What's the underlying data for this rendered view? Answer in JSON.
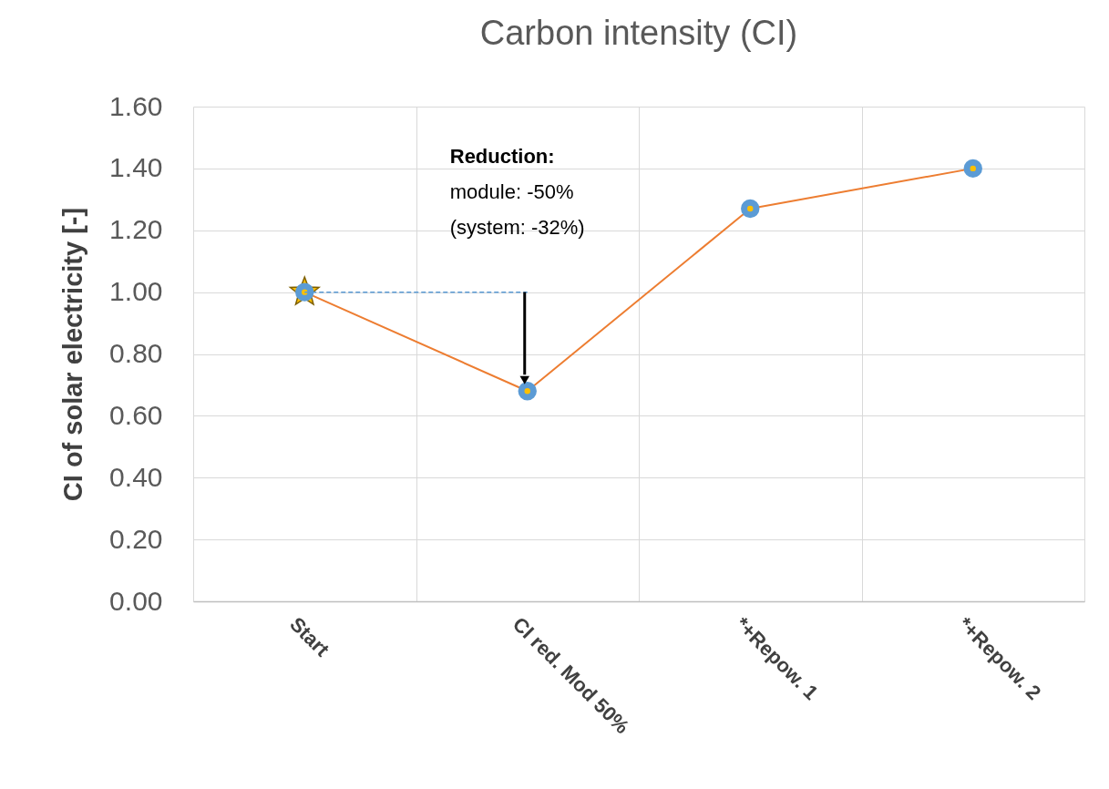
{
  "chart_data": {
    "type": "line",
    "title": "Carbon intensity (CI)",
    "ylabel": "CI of solar  electricity [-]",
    "categories": [
      "Start",
      "CI red. Mod 50%",
      "*+Repow. 1",
      "*+Repow. 2"
    ],
    "series": [
      {
        "color": "#ed7d31",
        "values": [
          1.0,
          0.68,
          1.27,
          1.4
        ]
      }
    ],
    "ylim": [
      0,
      1.6
    ],
    "yticks": [
      {
        "value": 0,
        "label": "0.00"
      },
      {
        "value": 0.2,
        "label": "0.20"
      },
      {
        "value": 0.4,
        "label": "0.40"
      },
      {
        "value": 0.6,
        "label": "0.60"
      },
      {
        "value": 0.8,
        "label": "0.80"
      },
      {
        "value": 1.0,
        "label": "1.00"
      },
      {
        "value": 1.2,
        "label": "1.20"
      },
      {
        "value": 1.4,
        "label": "1.40"
      },
      {
        "value": 1.6,
        "label": "1.60"
      }
    ],
    "annotations": [
      "Reduction:",
      "module: -50%",
      "(system: -32%)"
    ],
    "grid": true,
    "marker": "circle",
    "line_style": "solid"
  }
}
